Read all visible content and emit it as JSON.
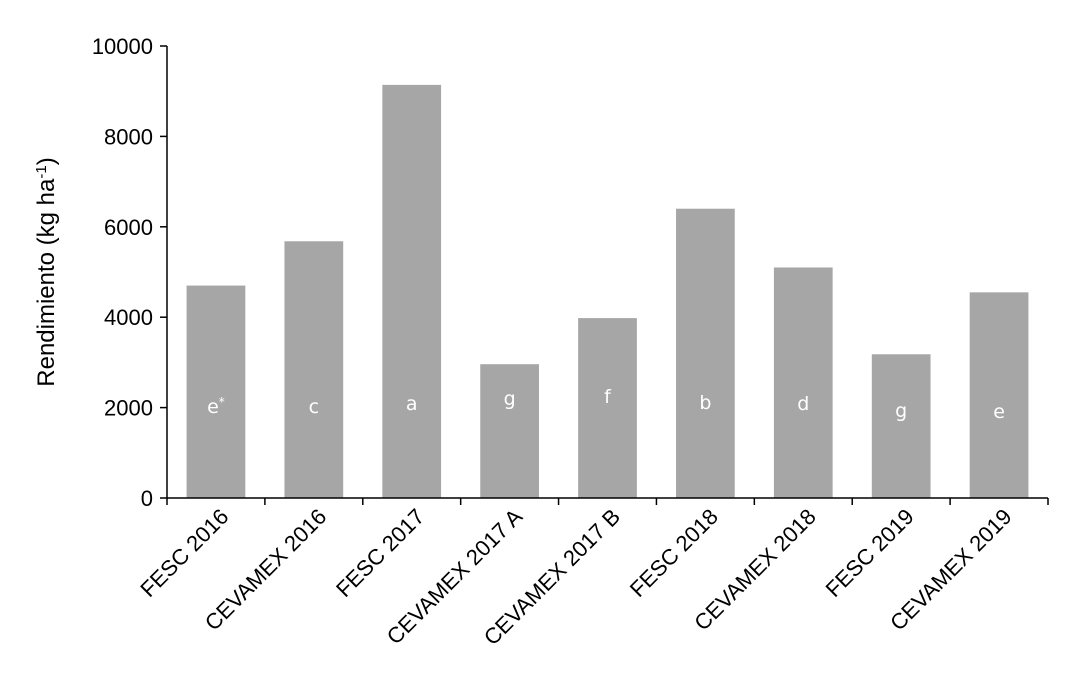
{
  "chart_data": {
    "type": "bar",
    "categories": [
      "FESC 2016",
      "CEVAMEX 2016",
      "FESC 2017",
      "CEVAMEX 2017 A",
      "CEVAMEX 2017 B",
      "FESC 2018",
      "CEVAMEX 2018",
      "FESC 2019",
      "CEVAMEX 2019"
    ],
    "values": [
      4700,
      5680,
      9140,
      2960,
      3980,
      6400,
      5100,
      3180,
      4550
    ],
    "bar_labels": [
      "e",
      "c",
      "a",
      "g",
      "f",
      "b",
      "d",
      "g",
      "e"
    ],
    "bar_label_superscripts": [
      "*",
      "",
      "",
      "",
      "",
      "",
      "",
      "",
      ""
    ],
    "ylabel": "Rendimiento (kg ha",
    "ylabel_superscript": "-1",
    "ylabel_suffix": ")",
    "ylim": [
      0,
      10000
    ],
    "yticks": [
      0,
      2000,
      4000,
      6000,
      8000,
      10000
    ],
    "bar_color": "#a6a6a6",
    "bar_label_color": "#ffffff",
    "axis_color": "#000000",
    "grid": false,
    "legend": "none"
  }
}
